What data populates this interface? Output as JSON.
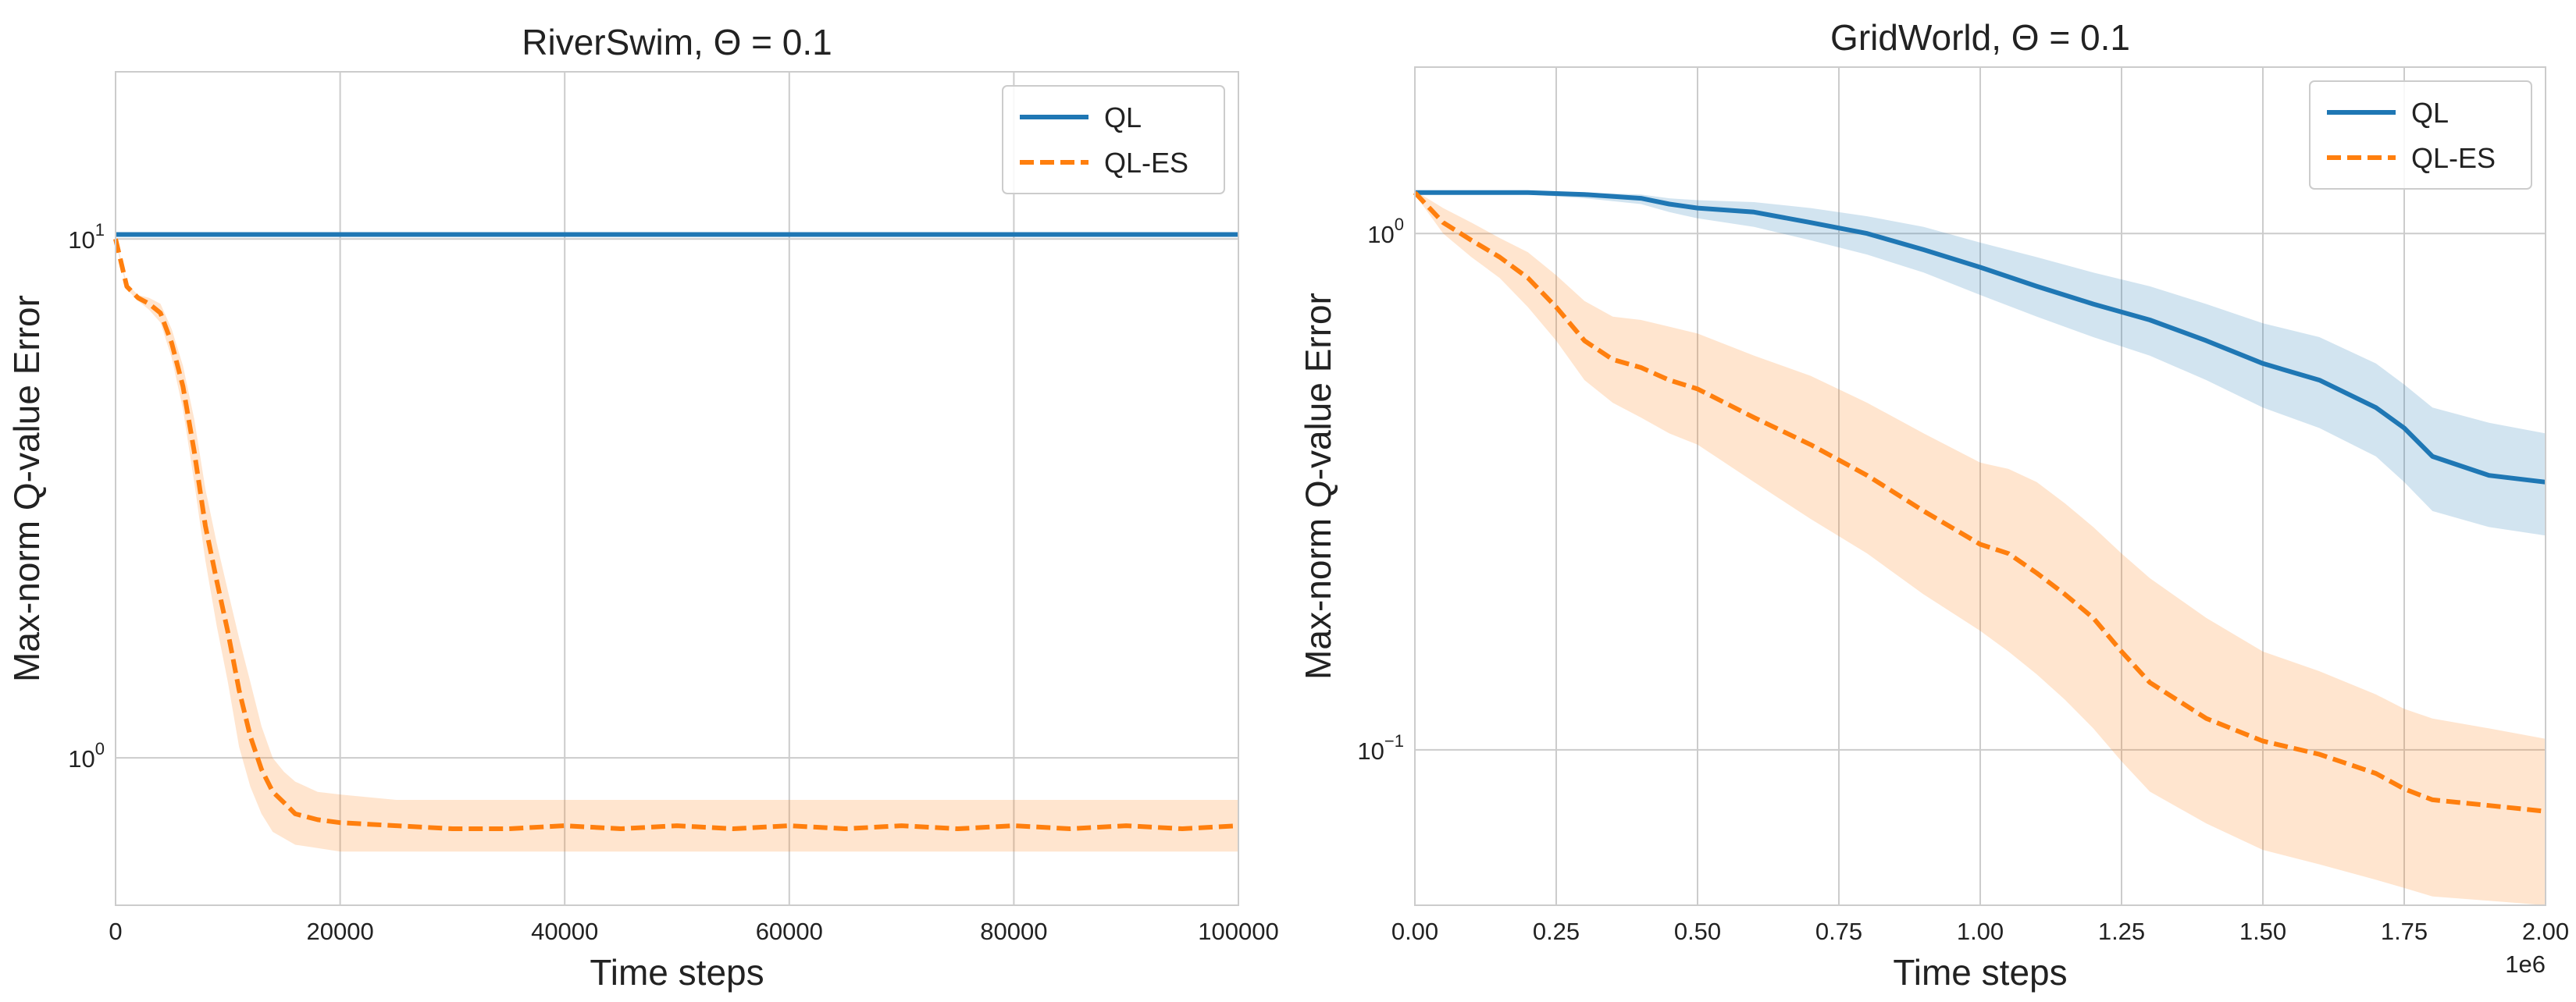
{
  "chart_data": [
    {
      "type": "line",
      "title": "RiverSwim, Θ = 0.1",
      "xlabel": "Time steps",
      "ylabel": "Max-norm Q-value Error",
      "xscale": "linear",
      "yscale": "log",
      "xlim": [
        0,
        100000
      ],
      "ylim": [
        0.52,
        21
      ],
      "grid": true,
      "legend_position": "top-right",
      "x_ticks": [
        0,
        20000,
        40000,
        60000,
        80000,
        100000
      ],
      "x_tick_labels": [
        "0",
        "20000",
        "40000",
        "60000",
        "80000",
        "100000"
      ],
      "y_ticks": [
        {
          "value": 10,
          "base": "10",
          "exp": "1"
        },
        {
          "value": 1,
          "base": "10",
          "exp": "0"
        }
      ],
      "x_offset_label": "",
      "series": [
        {
          "name": "QL",
          "color": "#1f77b4",
          "style": "solid",
          "x": [
            0,
            100000
          ],
          "y": [
            10.2,
            10.2
          ]
        },
        {
          "name": "QL-ES",
          "color": "#ff7f0e",
          "style": "dashed",
          "x": [
            0,
            1000,
            2000,
            3000,
            4000,
            5000,
            6000,
            7000,
            8000,
            9000,
            10000,
            11000,
            12000,
            13000,
            14000,
            15000,
            16000,
            18000,
            20000,
            25000,
            30000,
            35000,
            40000,
            45000,
            50000,
            55000,
            60000,
            65000,
            70000,
            75000,
            80000,
            85000,
            90000,
            95000,
            100000
          ],
          "y": [
            10.0,
            8.1,
            7.7,
            7.5,
            7.2,
            6.3,
            5.2,
            3.9,
            2.8,
            2.2,
            1.75,
            1.35,
            1.1,
            0.95,
            0.86,
            0.82,
            0.78,
            0.76,
            0.75,
            0.74,
            0.73,
            0.73,
            0.74,
            0.73,
            0.74,
            0.73,
            0.74,
            0.73,
            0.74,
            0.73,
            0.74,
            0.73,
            0.74,
            0.73,
            0.74
          ],
          "band_low": [
            9.9,
            8.0,
            7.6,
            7.3,
            6.9,
            5.9,
            4.7,
            3.4,
            2.4,
            1.8,
            1.4,
            1.05,
            0.88,
            0.78,
            0.72,
            0.7,
            0.68,
            0.67,
            0.66,
            0.66,
            0.66,
            0.66,
            0.66,
            0.66,
            0.66,
            0.66,
            0.66,
            0.66,
            0.66,
            0.66,
            0.66,
            0.66,
            0.66,
            0.66,
            0.66
          ],
          "band_high": [
            10.1,
            8.2,
            7.8,
            7.7,
            7.5,
            6.7,
            5.7,
            4.5,
            3.3,
            2.6,
            2.1,
            1.7,
            1.4,
            1.15,
            1.0,
            0.94,
            0.9,
            0.86,
            0.85,
            0.83,
            0.83,
            0.83,
            0.83,
            0.83,
            0.83,
            0.83,
            0.83,
            0.83,
            0.83,
            0.83,
            0.83,
            0.83,
            0.83,
            0.83,
            0.83
          ]
        }
      ]
    },
    {
      "type": "line",
      "title": "GridWorld, Θ = 0.1",
      "xlabel": "Time steps",
      "ylabel": "Max-norm Q-value Error",
      "xscale": "linear",
      "yscale": "log",
      "xlim": [
        0,
        2000000
      ],
      "ylim": [
        0.05,
        2.1
      ],
      "grid": true,
      "legend_position": "top-right",
      "x_ticks": [
        0,
        250000,
        500000,
        750000,
        1000000,
        1250000,
        1500000,
        1750000,
        2000000
      ],
      "x_tick_labels": [
        "0.00",
        "0.25",
        "0.50",
        "0.75",
        "1.00",
        "1.25",
        "1.50",
        "1.75",
        "2.00"
      ],
      "y_ticks": [
        {
          "value": 1,
          "base": "10",
          "exp": "0"
        },
        {
          "value": 0.1,
          "base": "10",
          "exp": "−1"
        }
      ],
      "x_offset_label": "1e6",
      "series": [
        {
          "name": "QL",
          "color": "#1f77b4",
          "style": "solid",
          "x": [
            0,
            100000,
            200000,
            300000,
            400000,
            450000,
            500000,
            600000,
            700000,
            800000,
            900000,
            1000000,
            1100000,
            1200000,
            1300000,
            1400000,
            1500000,
            1600000,
            1700000,
            1750000,
            1800000,
            1900000,
            2000000
          ],
          "y": [
            1.2,
            1.2,
            1.2,
            1.19,
            1.17,
            1.14,
            1.12,
            1.1,
            1.05,
            1.0,
            0.93,
            0.86,
            0.79,
            0.73,
            0.68,
            0.62,
            0.56,
            0.52,
            0.46,
            0.42,
            0.37,
            0.34,
            0.33
          ],
          "band_low": [
            1.19,
            1.19,
            1.19,
            1.17,
            1.14,
            1.1,
            1.07,
            1.03,
            0.97,
            0.91,
            0.84,
            0.76,
            0.69,
            0.63,
            0.58,
            0.52,
            0.46,
            0.42,
            0.37,
            0.33,
            0.29,
            0.27,
            0.26
          ],
          "band_high": [
            1.21,
            1.21,
            1.21,
            1.2,
            1.19,
            1.17,
            1.16,
            1.15,
            1.12,
            1.08,
            1.03,
            0.96,
            0.9,
            0.84,
            0.79,
            0.73,
            0.67,
            0.63,
            0.56,
            0.51,
            0.46,
            0.43,
            0.41
          ]
        },
        {
          "name": "QL-ES",
          "color": "#ff7f0e",
          "style": "dashed",
          "x": [
            0,
            50000,
            100000,
            150000,
            200000,
            250000,
            300000,
            350000,
            400000,
            450000,
            500000,
            600000,
            700000,
            800000,
            900000,
            1000000,
            1050000,
            1100000,
            1150000,
            1200000,
            1250000,
            1300000,
            1400000,
            1500000,
            1600000,
            1700000,
            1750000,
            1800000,
            1900000,
            2000000
          ],
          "y": [
            1.2,
            1.05,
            0.97,
            0.9,
            0.82,
            0.72,
            0.62,
            0.57,
            0.55,
            0.52,
            0.5,
            0.44,
            0.39,
            0.34,
            0.29,
            0.25,
            0.24,
            0.22,
            0.2,
            0.18,
            0.155,
            0.135,
            0.115,
            0.104,
            0.098,
            0.09,
            0.084,
            0.08,
            0.078,
            0.076
          ],
          "band_low": [
            1.19,
            1.0,
            0.9,
            0.82,
            0.72,
            0.62,
            0.52,
            0.47,
            0.44,
            0.41,
            0.39,
            0.33,
            0.28,
            0.24,
            0.2,
            0.17,
            0.155,
            0.14,
            0.125,
            0.11,
            0.095,
            0.083,
            0.072,
            0.064,
            0.06,
            0.056,
            0.054,
            0.052,
            0.051,
            0.05
          ],
          "band_high": [
            1.21,
            1.12,
            1.05,
            0.98,
            0.92,
            0.83,
            0.74,
            0.69,
            0.68,
            0.66,
            0.64,
            0.58,
            0.53,
            0.47,
            0.41,
            0.36,
            0.35,
            0.33,
            0.3,
            0.27,
            0.24,
            0.215,
            0.18,
            0.155,
            0.142,
            0.128,
            0.12,
            0.115,
            0.11,
            0.105
          ]
        }
      ]
    }
  ]
}
